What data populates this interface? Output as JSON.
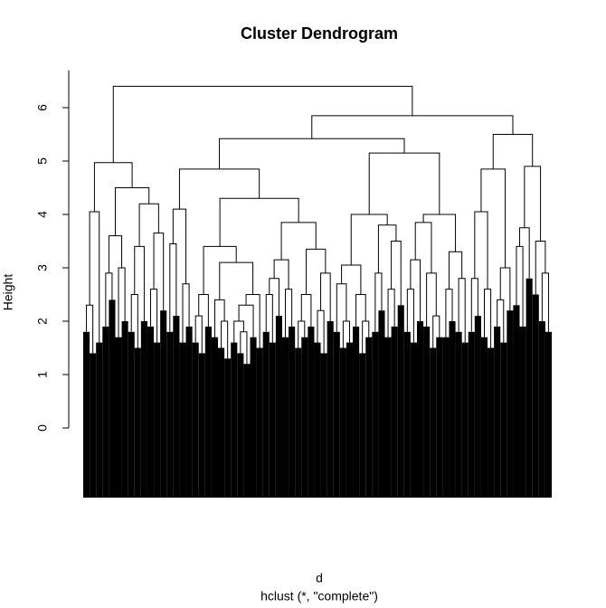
{
  "chart_data": {
    "type": "dendrogram",
    "title": "Cluster Dendrogram",
    "xlabel": "d",
    "subtitle": "hclust (*, \"complete\")",
    "ylabel": "Height",
    "ylim": [
      0,
      6.7
    ],
    "yticks": [
      0,
      1,
      2,
      3,
      4,
      5,
      6
    ],
    "color": "#000000",
    "tree": {
      "height": 6.4,
      "children": [
        {
          "height": 4.97,
          "children": [
            {
              "height": 4.05,
              "children": [
                {
                  "height": 2.3,
                  "children": [
                    1.8,
                    1.4
                  ]
                },
                1.6
              ]
            },
            {
              "height": 4.5,
              "children": [
                {
                  "height": 3.6,
                  "children": [
                    {
                      "height": 2.9,
                      "children": [
                        1.9,
                        2.4
                      ]
                    },
                    {
                      "height": 3.0,
                      "children": [
                        1.7,
                        2.0
                      ]
                    }
                  ]
                },
                {
                  "height": 4.2,
                  "children": [
                    {
                      "height": 3.4,
                      "children": [
                        {
                          "height": 2.5,
                          "children": [
                            1.8,
                            1.5
                          ]
                        },
                        2.0
                      ]
                    },
                    {
                      "height": 3.65,
                      "children": [
                        {
                          "height": 2.6,
                          "children": [
                            1.9,
                            1.6
                          ]
                        },
                        2.2
                      ]
                    }
                  ]
                }
              ]
            }
          ]
        },
        {
          "height": 5.85,
          "children": [
            {
              "height": 5.42,
              "children": [
                {
                  "height": 4.85,
                  "children": [
                    {
                      "height": 4.1,
                      "children": [
                        {
                          "height": 3.45,
                          "children": [
                            1.8,
                            2.1
                          ]
                        },
                        {
                          "height": 2.7,
                          "children": [
                            1.6,
                            1.9
                          ]
                        }
                      ]
                    },
                    {
                      "height": 4.3,
                      "children": [
                        {
                          "height": 3.4,
                          "children": [
                            {
                              "height": 2.5,
                              "children": [
                                {
                                  "height": 2.1,
                                  "children": [
                                    1.6,
                                    1.4
                                  ]
                                },
                                1.9
                              ]
                            },
                            {
                              "height": 3.1,
                              "children": [
                                {
                                  "height": 2.4,
                                  "children": [
                                    1.7,
                                    {
                                      "height": 2.0,
                                      "children": [
                                        1.5,
                                        1.3
                                      ]
                                    }
                                  ]
                                },
                                {
                                  "height": 2.5,
                                  "children": [
                                    {
                                      "height": 2.3,
                                      "children": [
                                        {
                                          "height": 2.0,
                                          "children": [
                                            1.6,
                                            {
                                              "height": 1.8,
                                              "children": [
                                                1.4,
                                                1.2
                                              ]
                                            }
                                          ]
                                        },
                                        1.7
                                      ]
                                    },
                                    1.5
                                  ]
                                }
                              ]
                            }
                          ]
                        },
                        {
                          "height": 3.85,
                          "children": [
                            {
                              "height": 3.15,
                              "children": [
                                {
                                  "height": 2.8,
                                  "children": [
                                    {
                                      "height": 2.5,
                                      "children": [
                                        1.8,
                                        1.6
                                      ]
                                    },
                                    2.1
                                  ]
                                },
                                {
                                  "height": 2.6,
                                  "children": [
                                    1.7,
                                    1.9
                                  ]
                                }
                              ]
                            },
                            {
                              "height": 3.35,
                              "children": [
                                {
                                  "height": 2.5,
                                  "children": [
                                    {
                                      "height": 2.0,
                                      "children": [
                                        1.5,
                                        1.7
                                      ]
                                    },
                                    1.9
                                  ]
                                },
                                {
                                  "height": 2.9,
                                  "children": [
                                    {
                                      "height": 2.2,
                                      "children": [
                                        1.6,
                                        1.4
                                      ]
                                    },
                                    2.0
                                  ]
                                }
                              ]
                            }
                          ]
                        }
                      ]
                    }
                  ]
                },
                {
                  "height": 5.15,
                  "children": [
                    {
                      "height": 4.0,
                      "children": [
                        {
                          "height": 3.05,
                          "children": [
                            {
                              "height": 2.7,
                              "children": [
                                1.8,
                                {
                                  "height": 2.0,
                                  "children": [
                                    1.5,
                                    1.6
                                  ]
                                }
                              ]
                            },
                            {
                              "height": 2.5,
                              "children": [
                                1.9,
                                {
                                  "height": 2.0,
                                  "children": [
                                    1.4,
                                    1.7
                                  ]
                                }
                              ]
                            }
                          ]
                        },
                        {
                          "height": 3.8,
                          "children": [
                            {
                              "height": 2.9,
                              "children": [
                                1.8,
                                2.2
                              ]
                            },
                            {
                              "height": 3.5,
                              "children": [
                                {
                                  "height": 2.6,
                                  "children": [
                                    1.7,
                                    1.9
                                  ]
                                },
                                2.3
                              ]
                            }
                          ]
                        }
                      ]
                    },
                    {
                      "height": 4.0,
                      "children": [
                        {
                          "height": 3.85,
                          "children": [
                            {
                              "height": 3.15,
                              "children": [
                                {
                                  "height": 2.6,
                                  "children": [
                                    1.8,
                                    1.6
                                  ]
                                },
                                2.0
                              ]
                            },
                            {
                              "height": 2.9,
                              "children": [
                                1.9,
                                {
                                  "height": 2.1,
                                  "children": [
                                    1.5,
                                    1.7
                                  ]
                                }
                              ]
                            }
                          ]
                        },
                        {
                          "height": 3.3,
                          "children": [
                            {
                              "height": 2.6,
                              "children": [
                                1.7,
                                2.0
                              ]
                            },
                            {
                              "height": 2.8,
                              "children": [
                                1.8,
                                1.6
                              ]
                            }
                          ]
                        }
                      ]
                    }
                  ]
                }
              ]
            },
            {
              "height": 5.5,
              "children": [
                {
                  "height": 4.85,
                  "children": [
                    {
                      "height": 4.05,
                      "children": [
                        {
                          "height": 2.8,
                          "children": [
                            1.8,
                            2.1
                          ]
                        },
                        {
                          "height": 2.6,
                          "children": [
                            1.7,
                            1.5
                          ]
                        }
                      ]
                    },
                    {
                      "height": 3.0,
                      "children": [
                        {
                          "height": 2.4,
                          "children": [
                            1.9,
                            1.6
                          ]
                        },
                        2.2
                      ]
                    }
                  ]
                },
                {
                  "height": 4.9,
                  "children": [
                    {
                      "height": 3.75,
                      "children": [
                        {
                          "height": 3.4,
                          "children": [
                            2.3,
                            1.9
                          ]
                        },
                        2.8
                      ]
                    },
                    {
                      "height": 3.5,
                      "children": [
                        2.5,
                        {
                          "height": 2.9,
                          "children": [
                            2.0,
                            1.8
                          ]
                        }
                      ]
                    }
                  ]
                }
              ]
            }
          ]
        }
      ]
    }
  }
}
